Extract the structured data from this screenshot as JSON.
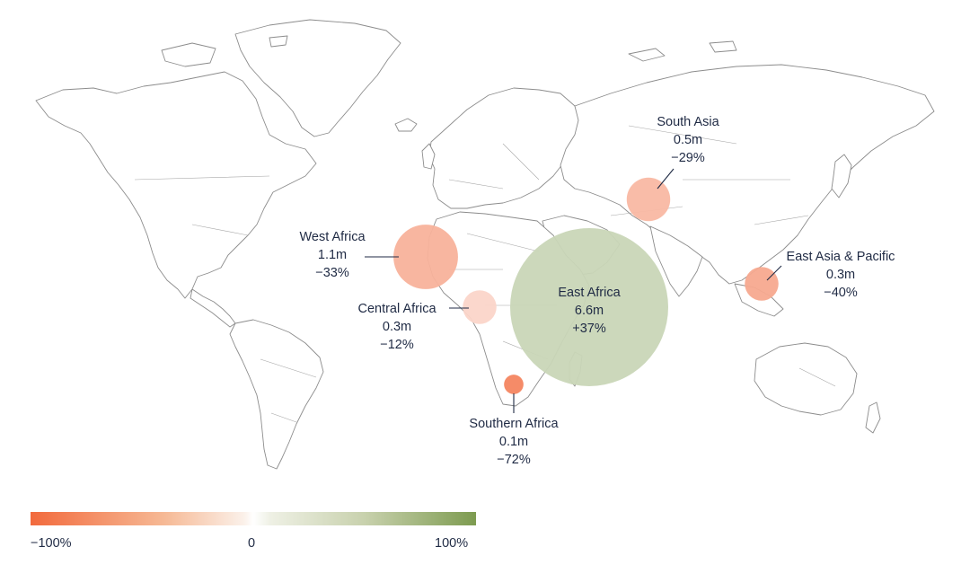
{
  "regions": [
    {
      "name": "West Africa",
      "value": "1.1m",
      "change": "−33%",
      "change_pct": -33,
      "millions": 1.1
    },
    {
      "name": "Central Africa",
      "value": "0.3m",
      "change": "−12%",
      "change_pct": -12,
      "millions": 0.3
    },
    {
      "name": "East Africa",
      "value": "6.6m",
      "change": "+37%",
      "change_pct": 37,
      "millions": 6.6
    },
    {
      "name": "Southern Africa",
      "value": "0.1m",
      "change": "−72%",
      "change_pct": -72,
      "millions": 0.1
    },
    {
      "name": "South Asia",
      "value": "0.5m",
      "change": "−29%",
      "change_pct": -29,
      "millions": 0.5
    },
    {
      "name": "East Asia & Pacific",
      "value": "0.3m",
      "change": "−40%",
      "change_pct": -40,
      "millions": 0.3
    }
  ],
  "legend": {
    "min_label": "−100%",
    "mid_label": "0",
    "max_label": "100%",
    "colors": {
      "negative": "#f26a3d",
      "neutral": "#ffffff",
      "positive": "#7d9b50"
    }
  }
}
